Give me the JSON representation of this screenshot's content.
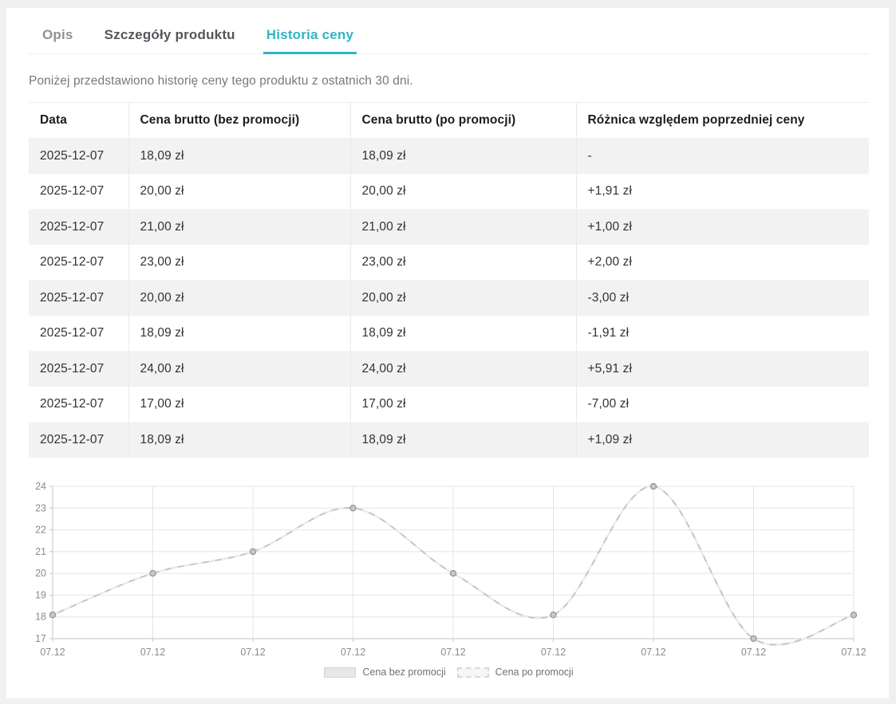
{
  "tabs": [
    {
      "id": "opis",
      "label": "Opis",
      "active": false,
      "emphasis": false
    },
    {
      "id": "szczegoly-produktu",
      "label": "Szczegóły produktu",
      "active": false,
      "emphasis": true
    },
    {
      "id": "historia-ceny",
      "label": "Historia ceny",
      "active": true,
      "emphasis": false
    }
  ],
  "intro": "Poniżej przedstawiono historię ceny tego produktu z ostatnich 30 dni.",
  "table": {
    "columns": [
      "Data",
      "Cena brutto (bez promocji)",
      "Cena brutto (po promocji)",
      "Różnica względem poprzedniej ceny"
    ],
    "rows": [
      {
        "date": "2025-12-07",
        "price_before": "18,09 zł",
        "price_after": "18,09 zł",
        "diff": "-"
      },
      {
        "date": "2025-12-07",
        "price_before": "20,00 zł",
        "price_after": "20,00 zł",
        "diff": "+1,91 zł"
      },
      {
        "date": "2025-12-07",
        "price_before": "21,00 zł",
        "price_after": "21,00 zł",
        "diff": "+1,00 zł"
      },
      {
        "date": "2025-12-07",
        "price_before": "23,00 zł",
        "price_after": "23,00 zł",
        "diff": "+2,00 zł"
      },
      {
        "date": "2025-12-07",
        "price_before": "20,00 zł",
        "price_after": "20,00 zł",
        "diff": "-3,00 zł"
      },
      {
        "date": "2025-12-07",
        "price_before": "18,09 zł",
        "price_after": "18,09 zł",
        "diff": "-1,91 zł"
      },
      {
        "date": "2025-12-07",
        "price_before": "24,00 zł",
        "price_after": "24,00 zł",
        "diff": "+5,91 zł"
      },
      {
        "date": "2025-12-07",
        "price_before": "17,00 zł",
        "price_after": "17,00 zł",
        "diff": "-7,00 zł"
      },
      {
        "date": "2025-12-07",
        "price_before": "18,09 zł",
        "price_after": "18,09 zł",
        "diff": "+1,09 zł"
      }
    ]
  },
  "chart_data": {
    "type": "line",
    "x_labels": [
      "07.12",
      "07.12",
      "07.12",
      "07.12",
      "07.12",
      "07.12",
      "07.12",
      "07.12",
      "07.12"
    ],
    "series": [
      {
        "name": "Cena bez promocji",
        "style": "solid",
        "values": [
          18.09,
          20,
          21,
          23,
          20,
          18.09,
          24,
          17,
          18.09
        ]
      },
      {
        "name": "Cena po promocji",
        "style": "dashed",
        "values": [
          18.09,
          20,
          21,
          23,
          20,
          18.09,
          24,
          17,
          18.09
        ]
      }
    ],
    "ylim": [
      17,
      24
    ],
    "yticks": [
      17,
      18,
      19,
      20,
      21,
      22,
      23,
      24
    ],
    "grid": true,
    "line_shape": "spline",
    "legend_position": "bottom"
  },
  "colors": {
    "accent": "#2fb4c8",
    "page_bg": "#f0f0f1",
    "card_bg": "#ffffff",
    "row_alt_bg": "#f2f2f2",
    "grid_line": "#e4e4e4",
    "axis_line": "#c6c6c6",
    "series_line": "#c4c4c4",
    "series_dash": "#ebebeb",
    "marker_fill": "#c9c9c9",
    "marker_stroke": "#9c9c9c",
    "tick_label": "#8b8b8b"
  }
}
